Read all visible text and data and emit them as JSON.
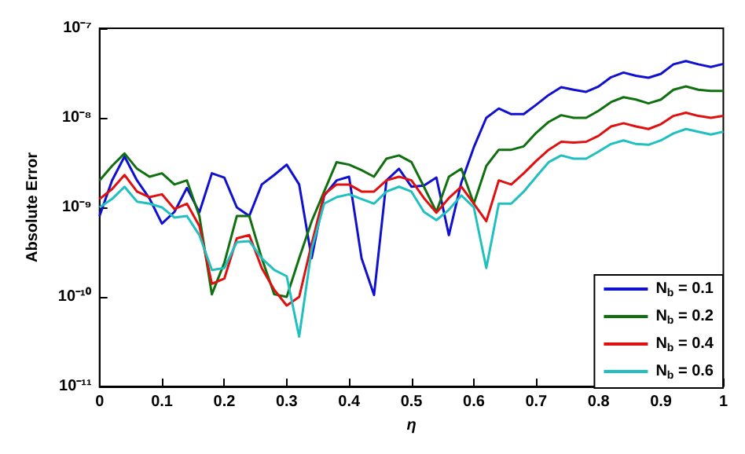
{
  "chart_data": {
    "type": "line",
    "xlabel": "η",
    "ylabel": "Absolute Error",
    "log": "y",
    "grid": false,
    "legend": "bottom right",
    "marker": "none",
    "line_style": "solid",
    "x": [
      0,
      0.02,
      0.04,
      0.06,
      0.08,
      0.1,
      0.12,
      0.14,
      0.16,
      0.18,
      0.2,
      0.22,
      0.24,
      0.26,
      0.28,
      0.3,
      0.32,
      0.34,
      0.36,
      0.38,
      0.4,
      0.42,
      0.44,
      0.46,
      0.48,
      0.5,
      0.52,
      0.54,
      0.56,
      0.58,
      0.6,
      0.62,
      0.64,
      0.66,
      0.68,
      0.7,
      0.72,
      0.74,
      0.76,
      0.78,
      0.8,
      0.82,
      0.84,
      0.86,
      0.88,
      0.9,
      0.92,
      0.94,
      0.96,
      0.98,
      1
    ],
    "xlim": [
      0,
      1
    ],
    "xticks": [
      0,
      0.1,
      0.2,
      0.3,
      0.4,
      0.5,
      0.6,
      0.7,
      0.8,
      0.9,
      1
    ],
    "ylim": [
      1e-11,
      1e-07
    ],
    "yticks": [
      {
        "value": 1e-11,
        "label": "10⁻¹¹"
      },
      {
        "value": 1e-10,
        "label": "10⁻¹⁰"
      },
      {
        "value": 1e-09,
        "label": "10⁻⁹"
      },
      {
        "value": 1e-08,
        "label": "10⁻⁸"
      },
      {
        "value": 1e-07,
        "label": "10⁻⁷"
      }
    ],
    "series": [
      {
        "name": "N$_{b}$ = 0.1",
        "color": "#1010d0",
        "values": [
          8e-10,
          2e-09,
          3.7e-09,
          2e-09,
          1.26e-09,
          6.6e-10,
          8.9e-10,
          1.65e-09,
          8.8e-10,
          2.4e-09,
          2.15e-09,
          1e-09,
          8e-10,
          1.8e-09,
          2.3e-09,
          3e-09,
          1.8e-09,
          2.7e-10,
          1.35e-09,
          2e-09,
          2.2e-09,
          2.7e-10,
          1.05e-10,
          2e-09,
          2.7e-09,
          1.7e-09,
          1.75e-09,
          2.15e-09,
          4.9e-10,
          1.9e-09,
          4.7e-09,
          1e-08,
          1.27e-08,
          1.1e-08,
          1.1e-08,
          1.4e-08,
          1.8e-08,
          2.2e-08,
          2.06e-08,
          1.95e-08,
          2.24e-08,
          2.84e-08,
          3.2e-08,
          2.95e-08,
          2.8e-08,
          3.1e-08,
          3.96e-08,
          4.3e-08,
          3.96e-08,
          3.7e-08,
          4e-08
        ]
      },
      {
        "name": "N$_{b}$ = 0.2",
        "color": "#107010",
        "values": [
          2e-09,
          2.9e-09,
          4e-09,
          2.7e-09,
          2.2e-09,
          2.4e-09,
          1.8e-09,
          2e-09,
          8e-10,
          1.07e-10,
          2.4e-10,
          8e-10,
          8e-10,
          2.7e-10,
          1.07e-10,
          1e-10,
          2.7e-10,
          7e-10,
          1.5e-09,
          3.2e-09,
          3e-09,
          2.6e-09,
          2.2e-09,
          3.5e-09,
          3.8e-09,
          3.2e-09,
          1.7e-09,
          8.9e-10,
          2.2e-09,
          2.7e-09,
          1.1e-09,
          2.9e-09,
          4.4e-09,
          4.4e-09,
          4.8e-09,
          6.8e-09,
          9e-09,
          1.07e-08,
          1e-08,
          1e-08,
          1.2e-08,
          1.5e-08,
          1.7e-08,
          1.6e-08,
          1.45e-08,
          1.6e-08,
          2.06e-08,
          2.24e-08,
          2.06e-08,
          2e-08,
          2e-08
        ]
      },
      {
        "name": "N$_{b}$ = 0.4",
        "color": "#e01010",
        "values": [
          1.24e-09,
          1.6e-09,
          2.3e-09,
          1.5e-09,
          1.3e-09,
          1.4e-09,
          9.6e-10,
          1.1e-09,
          6.2e-10,
          1.4e-10,
          1.6e-10,
          4.5e-10,
          4.9e-10,
          2.1e-10,
          1.2e-10,
          8e-11,
          1e-10,
          3.9e-10,
          1.4e-09,
          1.8e-09,
          1.8e-09,
          1.5e-09,
          1.5e-09,
          2e-09,
          2.2e-09,
          2e-09,
          1.27e-09,
          8.7e-10,
          1.27e-09,
          1.7e-09,
          1.1e-09,
          7e-10,
          2e-09,
          1.8e-09,
          2.4e-09,
          3.3e-09,
          4.4e-09,
          5.4e-09,
          5.3e-09,
          5.4e-09,
          6.3e-09,
          8e-09,
          8.7e-09,
          8e-09,
          7.5e-09,
          8.5e-09,
          1.05e-08,
          1.14e-08,
          1.05e-08,
          1e-08,
          1.05e-08
        ]
      },
      {
        "name": "N$_{b}$ = 0.6",
        "color": "#20c0c0",
        "values": [
          1e-09,
          1.24e-09,
          1.7e-09,
          1.16e-09,
          1.1e-09,
          1e-09,
          7.7e-10,
          8e-10,
          4.9e-10,
          2e-10,
          2.1e-10,
          4.1e-10,
          4.2e-10,
          2.7e-10,
          2e-10,
          1.7e-10,
          3.6e-11,
          3.4e-10,
          1.1e-09,
          1.3e-09,
          1.4e-09,
          1.24e-09,
          1.1e-09,
          1.5e-09,
          1.7e-09,
          1.5e-09,
          8.9e-10,
          7.2e-10,
          9.4e-10,
          1.36e-09,
          1e-09,
          2.1e-10,
          1.1e-09,
          1.1e-09,
          1.5e-09,
          2.2e-09,
          3.2e-09,
          3.8e-09,
          3.5e-09,
          3.5e-09,
          4.2e-09,
          5.1e-09,
          5.6e-09,
          5.1e-09,
          5e-09,
          5.6e-09,
          6.7e-09,
          7.5e-09,
          7e-09,
          6.5e-09,
          7e-09
        ]
      }
    ]
  }
}
